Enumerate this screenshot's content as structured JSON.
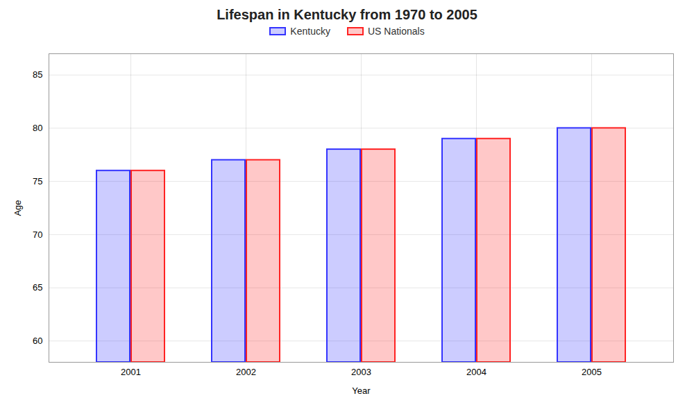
{
  "chart_data": {
    "type": "bar",
    "title": "Lifespan in Kentucky from 1970 to 2005",
    "xlabel": "Year",
    "ylabel": "Age",
    "categories": [
      "2001",
      "2002",
      "2003",
      "2004",
      "2005"
    ],
    "series": [
      {
        "name": "Kentucky",
        "color": "#3333ff",
        "values": [
          76,
          77,
          78,
          79,
          80
        ]
      },
      {
        "name": "US Nationals",
        "color": "#ff2222",
        "values": [
          76,
          77,
          78,
          79,
          80
        ]
      }
    ],
    "ylim": [
      58,
      87
    ],
    "yticks": [
      60,
      65,
      70,
      75,
      80,
      85
    ],
    "grid": true,
    "legend": "top"
  }
}
